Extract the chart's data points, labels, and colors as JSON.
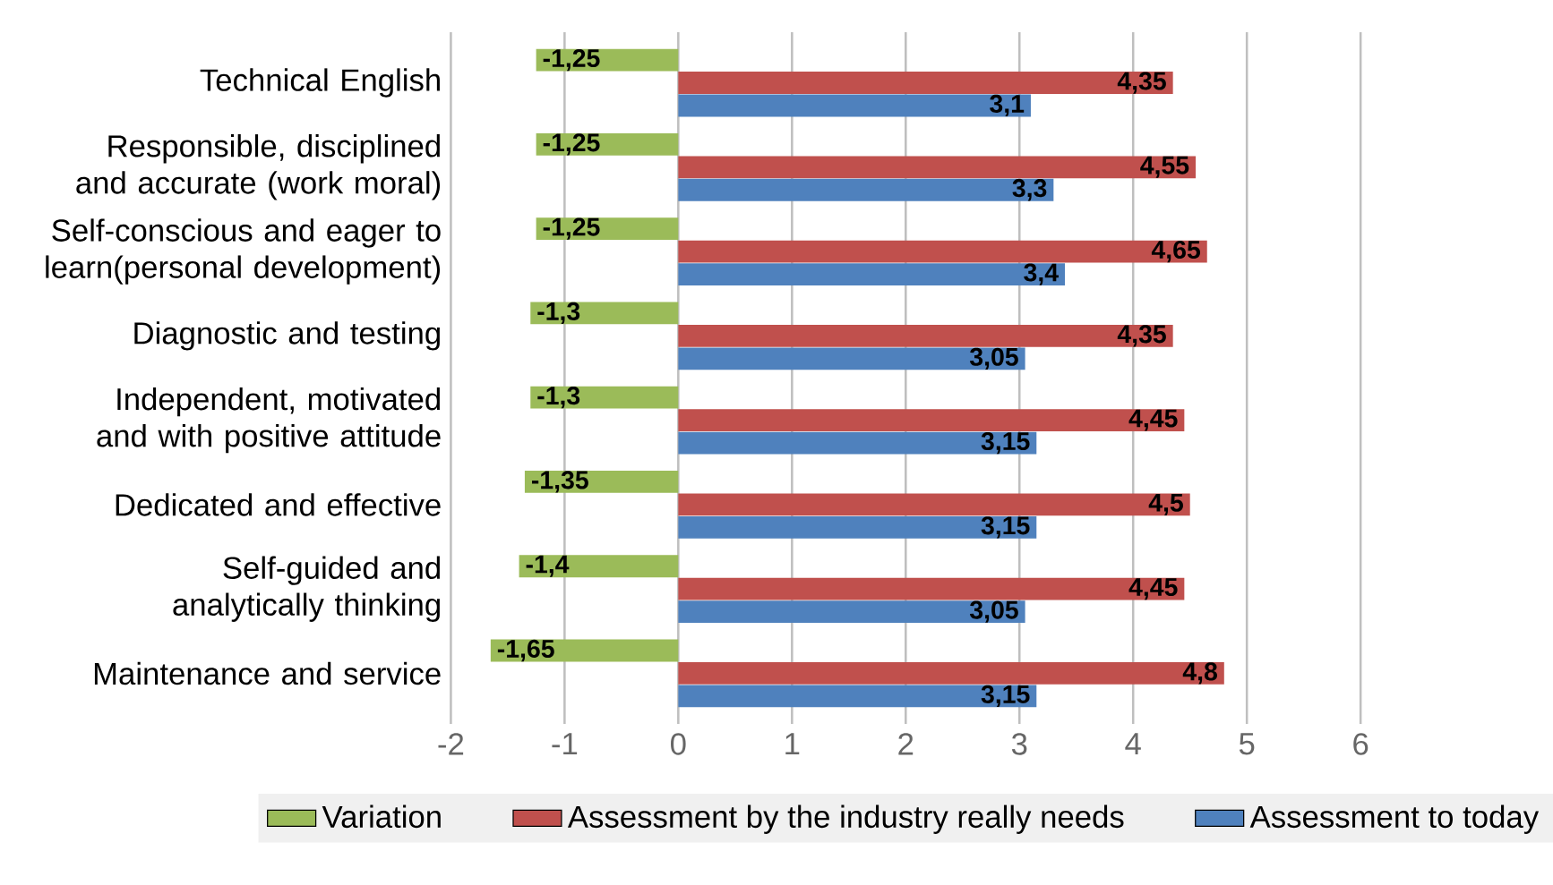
{
  "chart_data": {
    "type": "bar",
    "orientation": "horizontal",
    "categories": [
      "Technical English",
      "Responsible, disciplined and accurate (work moral)",
      "Self-conscious and eager to learn(personal development)",
      "Diagnostic and testing",
      "Independent, motivated and with positive attitude",
      "Dedicated and effective",
      "Self-guided and analytically thinking",
      "Maintenance and service"
    ],
    "series": [
      {
        "name": "Variation",
        "color": "#9bbb59",
        "values": [
          -1.25,
          -1.25,
          -1.25,
          -1.3,
          -1.3,
          -1.35,
          -1.4,
          -1.65
        ],
        "value_labels": [
          "-1,25",
          "-1,25",
          "-1,25",
          "-1,3",
          "-1,3",
          "-1,35",
          "-1,4",
          "-1,65"
        ]
      },
      {
        "name": "Assessment by the industry really needs",
        "color": "#c0504d",
        "values": [
          4.35,
          4.55,
          4.65,
          4.35,
          4.45,
          4.5,
          4.45,
          4.8
        ],
        "value_labels": [
          "4,35",
          "4,55",
          "4,65",
          "4,35",
          "4,45",
          "4,5",
          "4,45",
          "4,8"
        ]
      },
      {
        "name": "Assessment to today",
        "color": "#4f81bd",
        "values": [
          3.1,
          3.3,
          3.4,
          3.05,
          3.15,
          3.15,
          3.05,
          3.15
        ],
        "value_labels": [
          "3,1",
          "3,3",
          "3,4",
          "3,05",
          "3,15",
          "3,15",
          "3,05",
          "3,15"
        ]
      }
    ],
    "xlim": [
      -2,
      6
    ],
    "xticks": [
      -2,
      -1,
      0,
      1,
      2,
      3,
      4,
      5,
      6
    ],
    "grid": "x",
    "legend": "bottom"
  }
}
